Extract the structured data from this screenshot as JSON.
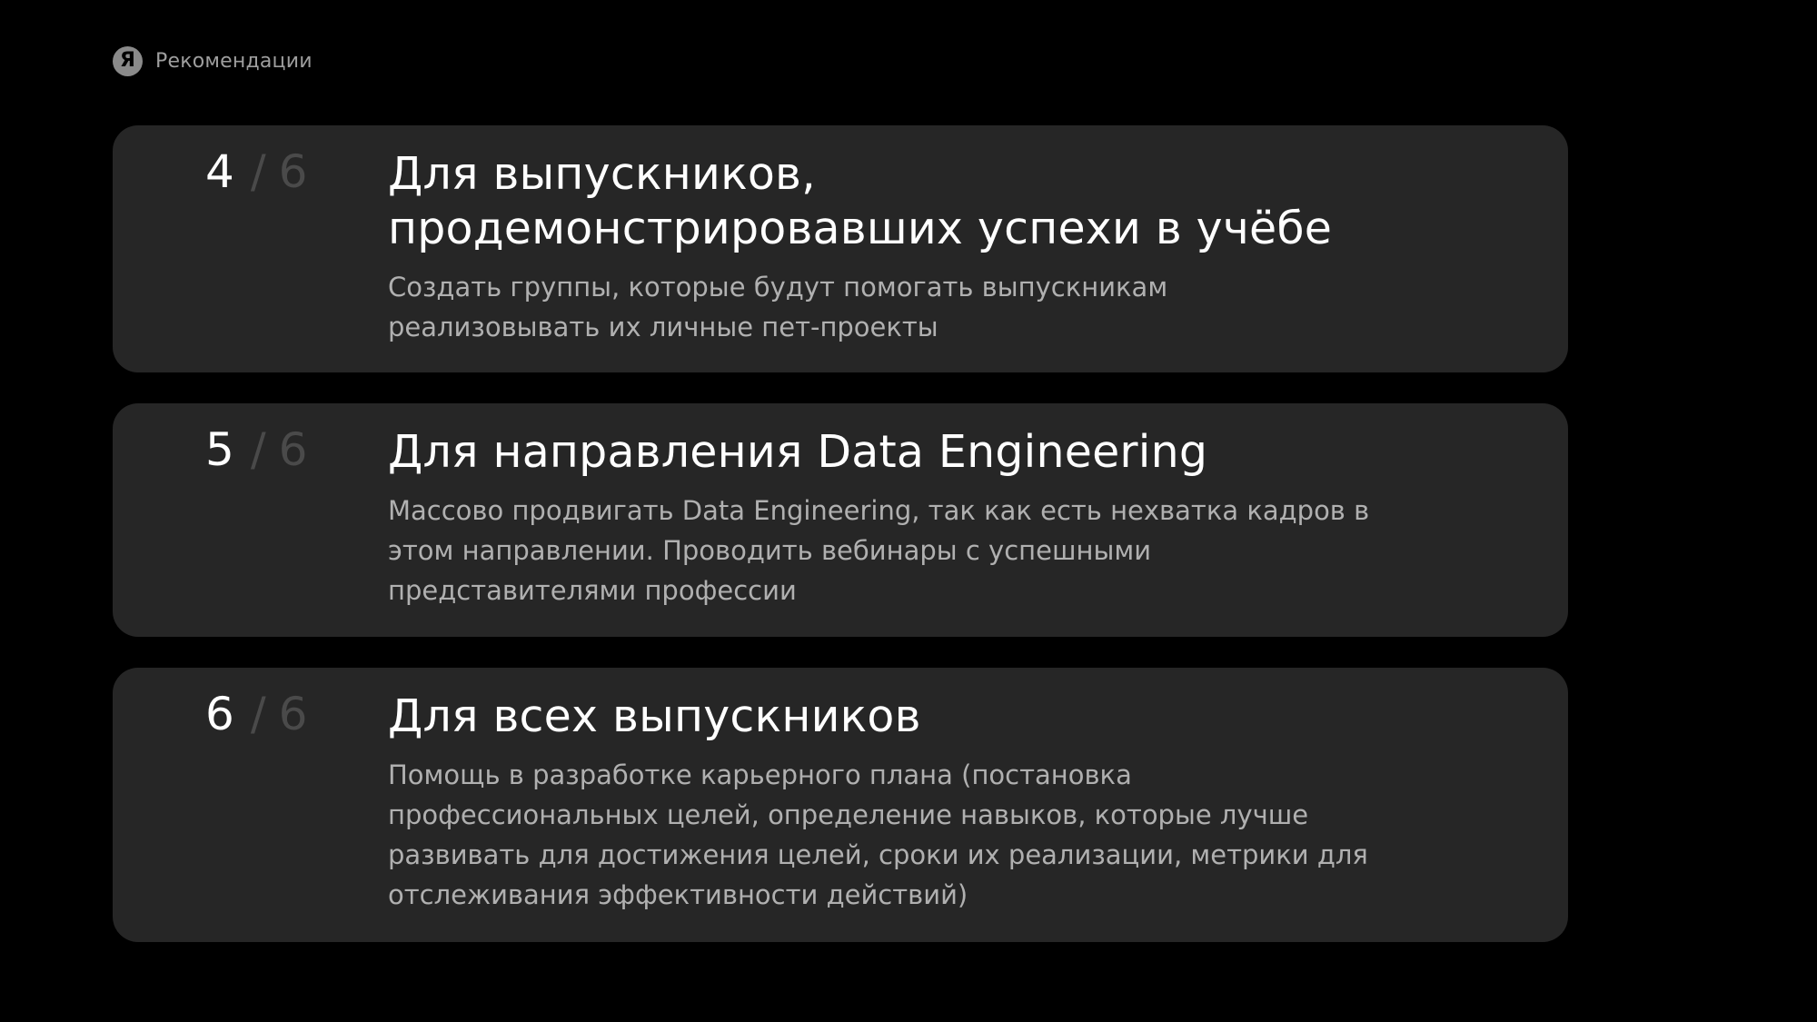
{
  "header": {
    "logo_letter": "Я",
    "section_label": "Рекомендации"
  },
  "cards": [
    {
      "number": "4",
      "separator": "/",
      "total": "6",
      "title": "Для выпускников, продемонстрировавших успехи в учёбе",
      "text": "Создать группы, которые будут помогать выпускникам реализовывать их личные пет-проекты"
    },
    {
      "number": "5",
      "separator": "/",
      "total": "6",
      "title": "Для направления Data Engineering",
      "text": "Массово продвигать Data Engineering, так как есть нехватка кадров в этом направлении. Проводить вебинары с успешными представителями профессии"
    },
    {
      "number": "6",
      "separator": "/",
      "total": "6",
      "title": "Для всех выпускников",
      "text": "Помощь в разработке карьерного плана (постановка профессиональных целей, определение навыков, которые лучше развивать для достижения целей, сроки их реализации, метрики для отслеживания эффективности действий)"
    }
  ],
  "colors": {
    "background": "#000000",
    "card_background": "#262626",
    "title_text": "#ffffff",
    "body_text": "#b0b0b0",
    "muted_counter": "#4a4a4a",
    "label_text": "#9e9e9e"
  }
}
